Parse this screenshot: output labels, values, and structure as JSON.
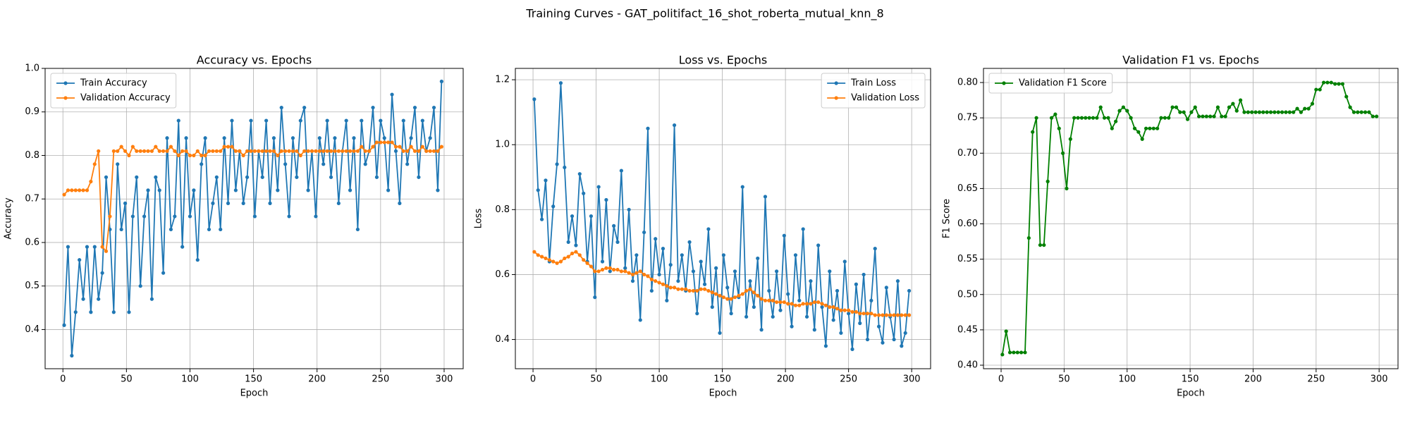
{
  "title": "Training Curves - GAT_politifact_16_shot_roberta_mutual_knn_8",
  "chart_data": [
    {
      "type": "line",
      "title": "Accuracy vs. Epochs",
      "xlabel": "Epoch",
      "ylabel": "Accuracy",
      "legend": "upper left",
      "grid": true,
      "xlim": [
        -14,
        315
      ],
      "ylim": [
        0.31,
        1.0
      ],
      "xticks": [
        0,
        50,
        100,
        150,
        200,
        250,
        300
      ],
      "yticks": [
        0.4,
        0.5,
        0.6,
        0.7,
        0.8,
        0.9,
        {
          "value": 1.0,
          "label": "1.0"
        }
      ],
      "x": [
        1,
        4,
        7,
        10,
        13,
        16,
        19,
        22,
        25,
        28,
        31,
        34,
        37,
        40,
        43,
        46,
        49,
        52,
        55,
        58,
        61,
        64,
        67,
        70,
        73,
        76,
        79,
        82,
        85,
        88,
        91,
        94,
        97,
        100,
        103,
        106,
        109,
        112,
        115,
        118,
        121,
        124,
        127,
        130,
        133,
        136,
        139,
        142,
        145,
        148,
        151,
        154,
        157,
        160,
        163,
        166,
        169,
        172,
        175,
        178,
        181,
        184,
        187,
        190,
        193,
        196,
        199,
        202,
        205,
        208,
        211,
        214,
        217,
        220,
        223,
        226,
        229,
        232,
        235,
        238,
        241,
        244,
        247,
        250,
        253,
        256,
        259,
        262,
        265,
        268,
        271,
        274,
        277,
        280,
        283,
        286,
        289,
        292,
        295,
        298
      ],
      "series": [
        {
          "name": "Train Accuracy",
          "color": "#1f77b4",
          "values": [
            0.41,
            0.59,
            0.34,
            0.44,
            0.56,
            0.47,
            0.59,
            0.44,
            0.59,
            0.47,
            0.53,
            0.75,
            0.63,
            0.44,
            0.78,
            0.63,
            0.69,
            0.44,
            0.66,
            0.75,
            0.5,
            0.66,
            0.72,
            0.47,
            0.75,
            0.72,
            0.53,
            0.84,
            0.63,
            0.66,
            0.88,
            0.59,
            0.84,
            0.66,
            0.72,
            0.56,
            0.78,
            0.84,
            0.63,
            0.69,
            0.75,
            0.63,
            0.84,
            0.69,
            0.88,
            0.72,
            0.81,
            0.69,
            0.75,
            0.88,
            0.66,
            0.81,
            0.75,
            0.88,
            0.69,
            0.84,
            0.72,
            0.91,
            0.78,
            0.66,
            0.84,
            0.75,
            0.88,
            0.91,
            0.72,
            0.81,
            0.66,
            0.84,
            0.78,
            0.88,
            0.75,
            0.84,
            0.69,
            0.81,
            0.88,
            0.72,
            0.84,
            0.63,
            0.88,
            0.78,
            0.81,
            0.91,
            0.75,
            0.88,
            0.84,
            0.72,
            0.94,
            0.81,
            0.69,
            0.88,
            0.78,
            0.84,
            0.91,
            0.75,
            0.88,
            0.81,
            0.84,
            0.91,
            0.72,
            0.97
          ]
        },
        {
          "name": "Validation Accuracy",
          "color": "#ff7f0e",
          "values": [
            0.71,
            0.72,
            0.72,
            0.72,
            0.72,
            0.72,
            0.72,
            0.74,
            0.78,
            0.81,
            0.59,
            0.58,
            0.66,
            0.81,
            0.81,
            0.82,
            0.81,
            0.8,
            0.82,
            0.81,
            0.81,
            0.81,
            0.81,
            0.81,
            0.82,
            0.81,
            0.81,
            0.81,
            0.82,
            0.81,
            0.8,
            0.81,
            0.81,
            0.8,
            0.8,
            0.81,
            0.8,
            0.8,
            0.81,
            0.81,
            0.81,
            0.81,
            0.82,
            0.82,
            0.82,
            0.81,
            0.81,
            0.8,
            0.81,
            0.81,
            0.81,
            0.81,
            0.81,
            0.81,
            0.81,
            0.81,
            0.8,
            0.81,
            0.81,
            0.81,
            0.81,
            0.81,
            0.8,
            0.81,
            0.81,
            0.81,
            0.81,
            0.81,
            0.81,
            0.81,
            0.81,
            0.81,
            0.81,
            0.81,
            0.81,
            0.81,
            0.81,
            0.81,
            0.82,
            0.81,
            0.81,
            0.82,
            0.83,
            0.83,
            0.83,
            0.83,
            0.83,
            0.82,
            0.82,
            0.81,
            0.81,
            0.82,
            0.81,
            0.81,
            0.82,
            0.81,
            0.81,
            0.81,
            0.81,
            0.82
          ]
        }
      ]
    },
    {
      "type": "line",
      "title": "Loss vs. Epochs",
      "xlabel": "Epoch",
      "ylabel": "Loss",
      "legend": "upper right",
      "grid": true,
      "xlim": [
        -14,
        315
      ],
      "ylim": [
        0.31,
        1.235
      ],
      "xticks": [
        0,
        50,
        100,
        150,
        200,
        250,
        300
      ],
      "yticks": [
        0.4,
        0.6,
        0.8,
        {
          "value": 1.0,
          "label": "1.0"
        },
        1.2
      ],
      "x": [
        1,
        4,
        7,
        10,
        13,
        16,
        19,
        22,
        25,
        28,
        31,
        34,
        37,
        40,
        43,
        46,
        49,
        52,
        55,
        58,
        61,
        64,
        67,
        70,
        73,
        76,
        79,
        82,
        85,
        88,
        91,
        94,
        97,
        100,
        103,
        106,
        109,
        112,
        115,
        118,
        121,
        124,
        127,
        130,
        133,
        136,
        139,
        142,
        145,
        148,
        151,
        154,
        157,
        160,
        163,
        166,
        169,
        172,
        175,
        178,
        181,
        184,
        187,
        190,
        193,
        196,
        199,
        202,
        205,
        208,
        211,
        214,
        217,
        220,
        223,
        226,
        229,
        232,
        235,
        238,
        241,
        244,
        247,
        250,
        253,
        256,
        259,
        262,
        265,
        268,
        271,
        274,
        277,
        280,
        283,
        286,
        289,
        292,
        295,
        298
      ],
      "series": [
        {
          "name": "Train Loss",
          "color": "#1f77b4",
          "values": [
            1.14,
            0.86,
            0.77,
            0.89,
            0.64,
            0.81,
            0.94,
            1.19,
            0.93,
            0.7,
            0.78,
            0.69,
            0.91,
            0.85,
            0.64,
            0.78,
            0.53,
            0.87,
            0.64,
            0.83,
            0.61,
            0.75,
            0.7,
            0.92,
            0.62,
            0.8,
            0.58,
            0.66,
            0.46,
            0.73,
            1.05,
            0.55,
            0.71,
            0.6,
            0.68,
            0.52,
            0.63,
            1.06,
            0.58,
            0.66,
            0.55,
            0.7,
            0.61,
            0.48,
            0.64,
            0.57,
            0.74,
            0.5,
            0.62,
            0.42,
            0.66,
            0.56,
            0.48,
            0.61,
            0.53,
            0.87,
            0.47,
            0.58,
            0.5,
            0.65,
            0.43,
            0.84,
            0.55,
            0.47,
            0.61,
            0.49,
            0.72,
            0.54,
            0.44,
            0.66,
            0.52,
            0.74,
            0.47,
            0.58,
            0.43,
            0.69,
            0.5,
            0.38,
            0.61,
            0.46,
            0.55,
            0.42,
            0.64,
            0.48,
            0.37,
            0.57,
            0.45,
            0.6,
            0.4,
            0.52,
            0.68,
            0.44,
            0.39,
            0.56,
            0.47,
            0.4,
            0.58,
            0.38,
            0.42,
            0.55
          ]
        },
        {
          "name": "Validation Loss",
          "color": "#ff7f0e",
          "values": [
            0.67,
            0.66,
            0.655,
            0.65,
            0.645,
            0.64,
            0.635,
            0.64,
            0.65,
            0.655,
            0.665,
            0.67,
            0.66,
            0.645,
            0.635,
            0.625,
            0.61,
            0.61,
            0.615,
            0.62,
            0.62,
            0.615,
            0.615,
            0.61,
            0.61,
            0.605,
            0.6,
            0.605,
            0.61,
            0.6,
            0.595,
            0.585,
            0.58,
            0.575,
            0.57,
            0.565,
            0.56,
            0.56,
            0.555,
            0.555,
            0.555,
            0.55,
            0.55,
            0.55,
            0.555,
            0.555,
            0.55,
            0.545,
            0.54,
            0.535,
            0.53,
            0.525,
            0.525,
            0.53,
            0.535,
            0.54,
            0.55,
            0.555,
            0.545,
            0.535,
            0.525,
            0.52,
            0.52,
            0.52,
            0.515,
            0.515,
            0.515,
            0.51,
            0.51,
            0.505,
            0.505,
            0.51,
            0.51,
            0.51,
            0.515,
            0.515,
            0.51,
            0.505,
            0.5,
            0.5,
            0.495,
            0.49,
            0.49,
            0.49,
            0.485,
            0.485,
            0.48,
            0.48,
            0.48,
            0.48,
            0.475,
            0.475,
            0.475,
            0.475,
            0.475,
            0.475,
            0.475,
            0.475,
            0.475,
            0.475
          ]
        }
      ]
    },
    {
      "type": "line",
      "title": "Validation F1 vs. Epochs",
      "xlabel": "Epoch",
      "ylabel": "F1 Score",
      "legend": "upper left",
      "grid": true,
      "xlim": [
        -14,
        315
      ],
      "ylim": [
        0.395,
        0.82
      ],
      "xticks": [
        0,
        50,
        100,
        150,
        200,
        250,
        300
      ],
      "yticks": [
        {
          "value": 0.4,
          "label": "0.40"
        },
        0.45,
        {
          "value": 0.5,
          "label": "0.50"
        },
        0.55,
        {
          "value": 0.6,
          "label": "0.60"
        },
        0.65,
        {
          "value": 0.7,
          "label": "0.70"
        },
        0.75,
        {
          "value": 0.8,
          "label": "0.80"
        }
      ],
      "x": [
        1,
        4,
        7,
        10,
        13,
        16,
        19,
        22,
        25,
        28,
        31,
        34,
        37,
        40,
        43,
        46,
        49,
        52,
        55,
        58,
        61,
        64,
        67,
        70,
        73,
        76,
        79,
        82,
        85,
        88,
        91,
        94,
        97,
        100,
        103,
        106,
        109,
        112,
        115,
        118,
        121,
        124,
        127,
        130,
        133,
        136,
        139,
        142,
        145,
        148,
        151,
        154,
        157,
        160,
        163,
        166,
        169,
        172,
        175,
        178,
        181,
        184,
        187,
        190,
        193,
        196,
        199,
        202,
        205,
        208,
        211,
        214,
        217,
        220,
        223,
        226,
        229,
        232,
        235,
        238,
        241,
        244,
        247,
        250,
        253,
        256,
        259,
        262,
        265,
        268,
        271,
        274,
        277,
        280,
        283,
        286,
        289,
        292,
        295,
        298
      ],
      "series": [
        {
          "name": "Validation F1 Score",
          "color": "#008000",
          "values": [
            0.415,
            0.448,
            0.418,
            0.418,
            0.418,
            0.418,
            0.418,
            0.58,
            0.73,
            0.75,
            0.57,
            0.57,
            0.66,
            0.75,
            0.755,
            0.735,
            0.7,
            0.65,
            0.72,
            0.75,
            0.75,
            0.75,
            0.75,
            0.75,
            0.75,
            0.75,
            0.765,
            0.75,
            0.75,
            0.735,
            0.745,
            0.76,
            0.765,
            0.76,
            0.75,
            0.735,
            0.73,
            0.72,
            0.735,
            0.735,
            0.735,
            0.735,
            0.75,
            0.75,
            0.75,
            0.765,
            0.765,
            0.758,
            0.758,
            0.748,
            0.758,
            0.765,
            0.752,
            0.752,
            0.752,
            0.752,
            0.752,
            0.765,
            0.752,
            0.752,
            0.765,
            0.77,
            0.76,
            0.775,
            0.758,
            0.758,
            0.758,
            0.758,
            0.758,
            0.758,
            0.758,
            0.758,
            0.758,
            0.758,
            0.758,
            0.758,
            0.758,
            0.758,
            0.763,
            0.758,
            0.763,
            0.763,
            0.77,
            0.79,
            0.79,
            0.8,
            0.8,
            0.8,
            0.798,
            0.798,
            0.798,
            0.78,
            0.765,
            0.758,
            0.758,
            0.758,
            0.758,
            0.758,
            0.752,
            0.752
          ]
        }
      ]
    }
  ]
}
